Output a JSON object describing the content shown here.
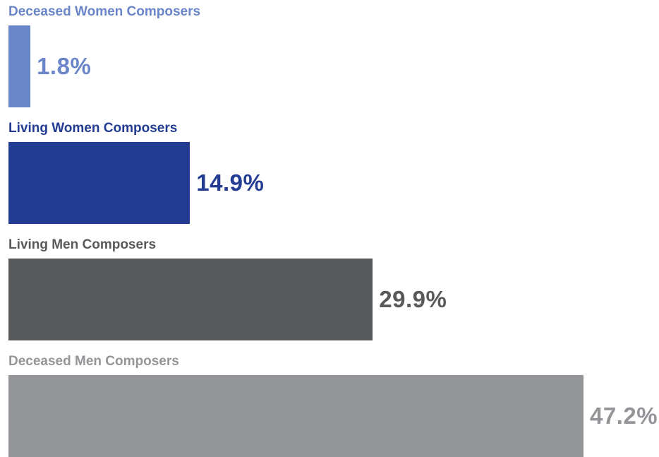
{
  "chart_data": {
    "type": "bar",
    "orientation": "horizontal",
    "categories": [
      "Deceased Women Composers",
      "Living Women Composers",
      "Living Men Composers",
      "Deceased Men Composers"
    ],
    "values": [
      1.8,
      14.9,
      29.9,
      47.2
    ],
    "value_labels": [
      "1.8%",
      "14.9%",
      "29.9%",
      "47.2%"
    ],
    "colors": [
      "#6a86c8",
      "#233c93",
      "#58595b",
      "#939598"
    ],
    "unit": "%",
    "xlim": [
      0,
      47.2
    ],
    "title": "",
    "xlabel": "",
    "ylabel": "",
    "grid": false,
    "legend": "none"
  }
}
